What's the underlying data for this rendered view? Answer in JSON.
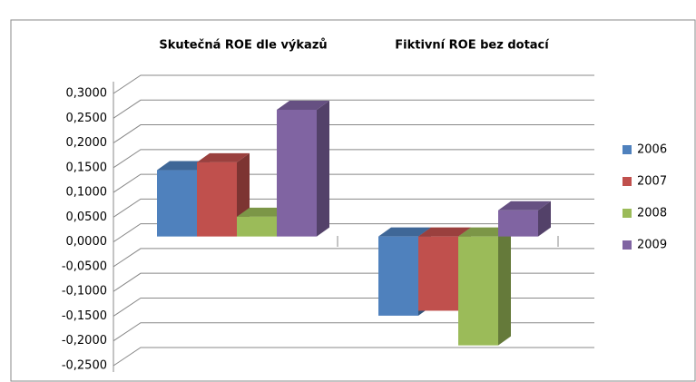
{
  "chart_data": {
    "type": "bar3d",
    "categories": [
      "Skutečná ROE dle výkazů",
      "Fiktivní ROE bez dotací"
    ],
    "series": [
      {
        "name": "2006",
        "color": "#4f81bd",
        "values": [
          0.134,
          -0.16
        ]
      },
      {
        "name": "2007",
        "color": "#c0504d",
        "values": [
          0.15,
          -0.15
        ]
      },
      {
        "name": "2008",
        "color": "#9bbb59",
        "values": [
          0.04,
          -0.22
        ]
      },
      {
        "name": "2009",
        "color": "#8064a2",
        "values": [
          0.256,
          0.053
        ]
      }
    ],
    "ylim": [
      -0.25,
      0.3
    ],
    "yticks": [
      {
        "value": 0.3,
        "label": "0,3000"
      },
      {
        "value": 0.25,
        "label": "0,2500"
      },
      {
        "value": 0.2,
        "label": "0,2000"
      },
      {
        "value": 0.15,
        "label": "0,1500"
      },
      {
        "value": 0.1,
        "label": "0,1000"
      },
      {
        "value": 0.05,
        "label": "0,0500"
      },
      {
        "value": 0,
        "label": "0,0000"
      },
      {
        "value": -0.05,
        "label": "-0,0500"
      },
      {
        "value": -0.1,
        "label": "-0,1000"
      },
      {
        "value": -0.15,
        "label": "-0,1500"
      },
      {
        "value": -0.2,
        "label": "-0,2000"
      },
      {
        "value": -0.25,
        "label": "-0,2500"
      }
    ],
    "grid": true,
    "legend": "right"
  }
}
